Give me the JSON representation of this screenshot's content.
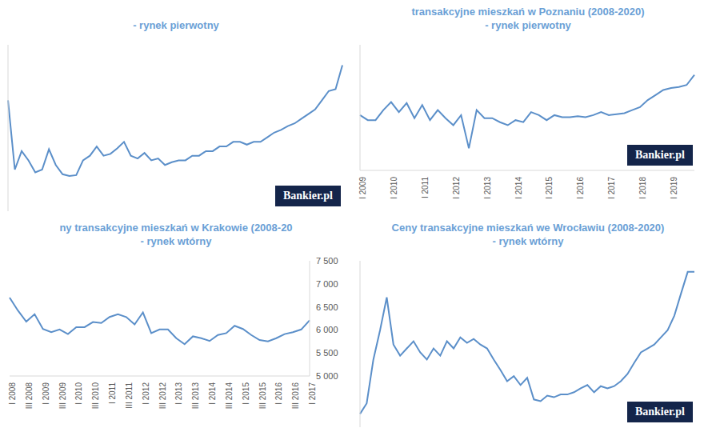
{
  "chart_data": [
    {
      "type": "line",
      "subtitle": "- rynek pierwotny",
      "annotation": "Bankier.pl",
      "color": "#5b8fc9",
      "grid": false,
      "tick_labels": false,
      "categories": [
        null,
        null,
        null,
        null,
        null,
        null,
        null,
        null,
        null,
        null,
        null,
        null,
        null,
        null,
        null,
        null,
        null,
        null,
        null,
        null,
        null,
        null,
        null,
        null,
        null,
        null,
        null,
        null,
        null,
        null,
        null,
        null,
        null,
        null,
        null,
        null,
        null,
        null,
        null,
        null,
        null,
        null,
        null,
        null,
        null,
        null,
        null,
        null,
        null,
        null
      ],
      "values": [
        8000,
        6125,
        6625,
        6375,
        6050,
        6125,
        6675,
        6250,
        6000,
        5950,
        5975,
        6375,
        6500,
        6750,
        6500,
        6550,
        6700,
        6875,
        6500,
        6425,
        6575,
        6375,
        6425,
        6250,
        6325,
        6375,
        6375,
        6500,
        6500,
        6625,
        6625,
        6750,
        6750,
        6875,
        6875,
        6800,
        6875,
        6875,
        7000,
        7125,
        7200,
        7300,
        7375,
        7500,
        7625,
        7750,
        8000,
        8250,
        8300,
        8950
      ],
      "ylim": [
        5000,
        9500
      ]
    },
    {
      "type": "line",
      "title": "transakcyjne mieszkań w Poznaniu (2008-2020)",
      "subtitle": "- rynek pierwotny",
      "annotation": "Bankier.pl",
      "color": "#5b8fc9",
      "grid": false,
      "tick_labels": "x",
      "categories": [
        "I 2009",
        null,
        null,
        null,
        "I 2010",
        null,
        null,
        null,
        "I 2011",
        null,
        null,
        null,
        "I 2012",
        null,
        null,
        null,
        "I 2013",
        null,
        null,
        null,
        "I 2014",
        null,
        null,
        null,
        "I 2015",
        null,
        null,
        null,
        "I 2016",
        null,
        null,
        null,
        "I 2017",
        null,
        null,
        null,
        "I 2018",
        null,
        null,
        null,
        "I 2019",
        null,
        null,
        null
      ],
      "values": [
        5600,
        5500,
        5500,
        5700,
        5860,
        5660,
        5840,
        5540,
        5800,
        5500,
        5700,
        5540,
        5400,
        5600,
        4940,
        5700,
        5540,
        5540,
        5460,
        5400,
        5500,
        5460,
        5660,
        5600,
        5500,
        5600,
        5560,
        5560,
        5580,
        5560,
        5600,
        5660,
        5600,
        5620,
        5640,
        5700,
        5760,
        5900,
        6000,
        6100,
        6140,
        6160,
        6200,
        6400
      ],
      "ylim": [
        4500,
        7000
      ]
    },
    {
      "type": "line",
      "title": "ny transakcyjne mieszkań w Krakowie (2008-20",
      "subtitle": "- rynek wtórny",
      "color": "#5b8fc9",
      "grid": false,
      "categories": [
        "I 2008",
        null,
        "III 2008",
        null,
        "I 2009",
        null,
        "III 2009",
        null,
        "I 2010",
        null,
        "III 2010",
        null,
        "I 2011",
        null,
        "III 2011",
        null,
        "I 2012",
        null,
        "III 2012",
        null,
        "I 2013",
        null,
        "III 2013",
        null,
        "I 2014",
        null,
        "III 2014",
        null,
        "I 2015",
        null,
        "III 2015",
        null,
        "I 2016",
        null,
        "III 2016",
        null,
        "I 2017"
      ],
      "values": [
        6700,
        6420,
        6180,
        6340,
        6020,
        5950,
        6010,
        5910,
        6060,
        6060,
        6170,
        6150,
        6280,
        6340,
        6280,
        6120,
        6380,
        5930,
        6010,
        6010,
        5820,
        5690,
        5860,
        5820,
        5760,
        5890,
        5930,
        6090,
        6020,
        5890,
        5780,
        5750,
        5820,
        5910,
        5950,
        6010,
        6210
      ],
      "ylim": [
        5000,
        7500
      ],
      "yticks": [
        {
          "value": 5000,
          "label": "5 000"
        },
        {
          "value": 5500,
          "label": "5 500"
        },
        {
          "value": 6000,
          "label": "6 000"
        },
        {
          "value": 6500,
          "label": "6 500"
        },
        {
          "value": 7000,
          "label": "7 000"
        },
        {
          "value": 7500,
          "label": "7 500"
        }
      ]
    },
    {
      "type": "line",
      "title": "Ceny transakcyjne mieszkań we Wrocławiu (2008-2020)",
      "subtitle": "- rynek wtórny",
      "annotation": "Bankier.pl",
      "color": "#5b8fc9",
      "grid": false,
      "tick_labels": false,
      "categories": [
        null,
        null,
        null,
        null,
        null,
        null,
        null,
        null,
        null,
        null,
        null,
        null,
        null,
        null,
        null,
        null,
        null,
        null,
        null,
        null,
        null,
        null,
        null,
        null,
        null,
        null,
        null,
        null,
        null,
        null,
        null,
        null,
        null,
        null,
        null,
        null,
        null,
        null,
        null,
        null,
        null,
        null,
        null,
        null,
        null,
        null,
        null,
        null,
        null,
        null,
        null
      ],
      "values": [
        4740,
        4930,
        5720,
        6250,
        6840,
        5990,
        5790,
        5920,
        6050,
        5850,
        5720,
        5920,
        5790,
        6050,
        5920,
        6120,
        6020,
        6090,
        5990,
        5920,
        5720,
        5530,
        5330,
        5420,
        5260,
        5390,
        5000,
        4970,
        5070,
        5040,
        5090,
        5090,
        5130,
        5200,
        5260,
        5130,
        5240,
        5200,
        5240,
        5330,
        5460,
        5660,
        5850,
        5920,
        5990,
        6120,
        6250,
        6510,
        6910,
        7300,
        7300
      ],
      "ylim": [
        4500,
        7500
      ]
    }
  ]
}
